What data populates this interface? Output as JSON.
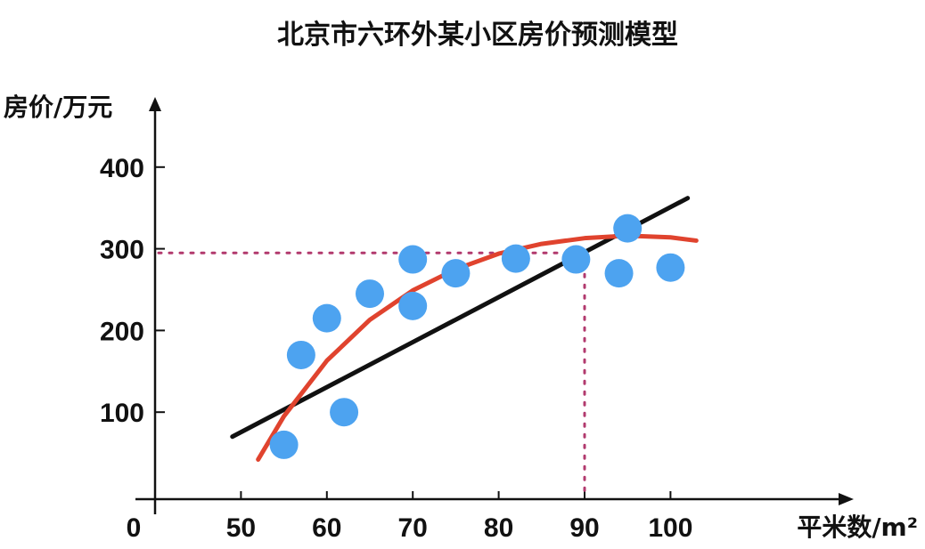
{
  "chart_data": {
    "type": "scatter",
    "title": "北京市六环外某小区房价预测模型",
    "ylabel": "房价/万元",
    "xlabel": "平米数/m²",
    "origin_label": "0",
    "x_ticks": [
      50,
      60,
      70,
      80,
      90,
      100
    ],
    "y_ticks": [
      100,
      200,
      300,
      400
    ],
    "grid": false,
    "points": [
      {
        "x": 55,
        "y": 60
      },
      {
        "x": 57,
        "y": 170
      },
      {
        "x": 60,
        "y": 215
      },
      {
        "x": 62,
        "y": 100
      },
      {
        "x": 65,
        "y": 245
      },
      {
        "x": 70,
        "y": 287
      },
      {
        "x": 70,
        "y": 230
      },
      {
        "x": 75,
        "y": 270
      },
      {
        "x": 82,
        "y": 288
      },
      {
        "x": 89,
        "y": 287
      },
      {
        "x": 94,
        "y": 270
      },
      {
        "x": 95,
        "y": 325
      },
      {
        "x": 100,
        "y": 277
      }
    ],
    "linear_fit": {
      "x": [
        49,
        102
      ],
      "y": [
        70,
        362
      ]
    },
    "curve_fit": {
      "x": [
        52,
        55,
        60,
        65,
        70,
        75,
        80,
        85,
        90,
        95,
        100,
        103
      ],
      "y": [
        42,
        95,
        163,
        213,
        249,
        275,
        294,
        306,
        313,
        316,
        314,
        310
      ]
    },
    "prediction": {
      "x": 90,
      "y": 295
    },
    "colors": {
      "points": "#4da3f0",
      "linear": "#111111",
      "curve": "#e0432e",
      "guide": "#b23a6e"
    }
  }
}
